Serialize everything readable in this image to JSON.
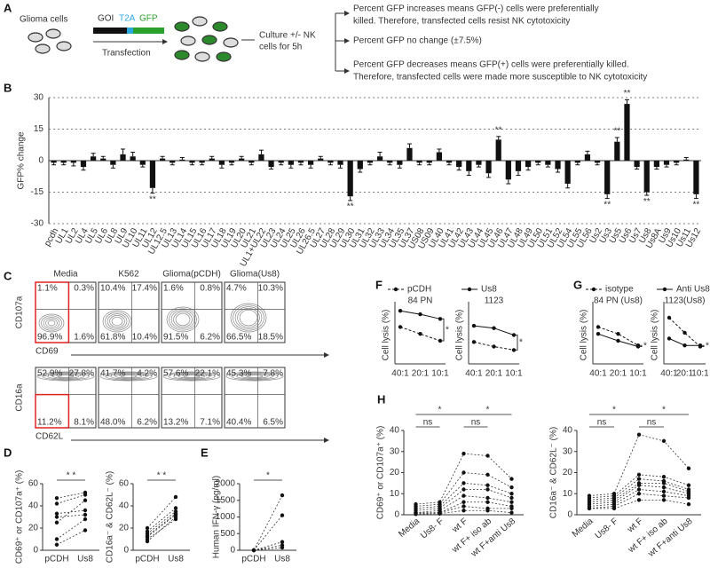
{
  "panel_a": {
    "label": "A",
    "cells": "Glioma cells",
    "construct": [
      "GOI",
      "T2A",
      "GFP"
    ],
    "transfection": "Transfection",
    "culture": [
      "Culture +/- NK",
      "cells for 5h"
    ],
    "outcomes": [
      [
        "Percent GFP increases means GFP(-) cells were preferentially",
        "killed. Therefore, transfected cells resist NK cytotoxicity"
      ],
      [
        "Percent GFP no change  (±7.5%)"
      ],
      [
        "Percent GFP decreases means GFP(+) cells were preferentially killed.",
        "Therefore, transfected cells were made more susceptible to NK cytotoxicity"
      ]
    ]
  },
  "panel_c": {
    "label": "C",
    "columns": [
      "Media",
      "K562",
      "Glioma(pCDH)",
      "Glioma(Us8)"
    ],
    "rows": [
      {
        "ylabel": "CD107a",
        "xlabel": "CD69",
        "quadrants": [
          [
            "1.1%",
            "0.3%",
            "96.9%",
            "1.6%"
          ],
          [
            "10.4%",
            "17.4%",
            "61.8%",
            "10.4%"
          ],
          [
            "1.6%",
            "0.8%",
            "91.5%",
            "6.2%"
          ],
          [
            "4.7%",
            "10.3%",
            "66.5%",
            "18.5%"
          ]
        ]
      },
      {
        "ylabel": "CD16a",
        "xlabel": "CD62L",
        "quadrants": [
          [
            "52.9%",
            "27.8%",
            "11.2%",
            "8.1%"
          ],
          [
            "41.7%",
            "4.2%",
            "48.0%",
            "6.2%"
          ],
          [
            "57.6%",
            "22.1%",
            "13.2%",
            "7.1%"
          ],
          [
            "45.3%",
            "7.8%",
            "40.4%",
            "6.5%"
          ]
        ]
      }
    ]
  },
  "chart_data": [
    {
      "type": "bar",
      "panel": "B",
      "ylabel": "GFP% change",
      "color": "#111111",
      "ylim": [
        -30,
        30
      ],
      "yticks": [
        -30,
        -15,
        0,
        15,
        30
      ],
      "grid": true,
      "categories": [
        "pcdh",
        "UL1",
        "UL2",
        "UL4",
        "UL5",
        "UL6",
        "UL8",
        "UL9",
        "UL10",
        "UL11",
        "UL12",
        "UL12.5",
        "UL13",
        "UL14",
        "UL15",
        "UL16",
        "UL17",
        "UL18",
        "UL19",
        "UL20",
        "UL21",
        "UL1+UL22",
        "UL23",
        "UL24",
        "UL25",
        "UL26",
        "UL26.5",
        "UL27",
        "UL28",
        "UL29",
        "UL30",
        "UL31",
        "UL32",
        "UL33",
        "UL34",
        "UL35",
        "UL37",
        "US08",
        "US09",
        "UL40",
        "UL41",
        "UL42",
        "UL43",
        "UL44",
        "UL45",
        "UL46",
        "UL47",
        "UL48",
        "UL49",
        "UL50",
        "UL51",
        "UL52",
        "UL54",
        "UL55",
        "UL56",
        "Us2",
        "Us3",
        "Us5",
        "Us6",
        "Us7",
        "Us8",
        "Us8A",
        "Us9",
        "Us10",
        "Us11",
        "Us12"
      ],
      "values": [
        -1,
        -1,
        -1,
        -3,
        2,
        1,
        -2,
        3,
        2,
        -2,
        -13,
        1,
        -1,
        0.5,
        -1,
        -1,
        1,
        -2,
        -1,
        1,
        -1,
        3,
        -3,
        -1,
        -2,
        -1,
        -2,
        1,
        -1,
        -2,
        -17,
        -4,
        -1,
        2,
        -1,
        -2,
        6,
        -1,
        -1,
        4,
        -1,
        -3,
        -5,
        -2,
        -6,
        10,
        -9,
        -5,
        -3,
        -1,
        -2,
        -4,
        -11,
        -1,
        3,
        -1,
        -16,
        9,
        27,
        -3,
        -15,
        -3,
        -2,
        -1,
        0.5,
        -16
      ],
      "errors": [
        1,
        1,
        1.5,
        1.5,
        1.5,
        1,
        1.5,
        2.5,
        2,
        1,
        2.5,
        1,
        1,
        1,
        1,
        1,
        1,
        1.5,
        1,
        1,
        1,
        2,
        1,
        1,
        1.5,
        1,
        1.5,
        1,
        1,
        1.5,
        2,
        1.5,
        1,
        2,
        1,
        1.5,
        2,
        1,
        1,
        1.5,
        1,
        1.5,
        2,
        1,
        2,
        1.5,
        2,
        2,
        1.5,
        1,
        1,
        1.5,
        2,
        1,
        1.5,
        1,
        2,
        2,
        2,
        1,
        1.5,
        1,
        1,
        1,
        1,
        2
      ],
      "significance": [
        null,
        null,
        null,
        null,
        null,
        null,
        null,
        null,
        null,
        null,
        "**",
        null,
        null,
        null,
        null,
        null,
        null,
        null,
        null,
        null,
        null,
        null,
        null,
        null,
        null,
        null,
        null,
        null,
        null,
        null,
        "**",
        null,
        null,
        null,
        null,
        null,
        null,
        null,
        null,
        null,
        null,
        null,
        null,
        null,
        null,
        "**",
        null,
        null,
        null,
        null,
        null,
        null,
        null,
        null,
        null,
        null,
        "**",
        "**",
        "**",
        null,
        "**",
        null,
        null,
        null,
        null,
        "**"
      ]
    },
    {
      "type": "paired",
      "panel": "D",
      "categories": [
        "pCDH",
        "Us8"
      ],
      "plots": [
        {
          "ylabel": "CD69⁺ or CD107a⁺ (%)",
          "ylim": [
            0,
            60
          ],
          "yticks": [
            0,
            20,
            40,
            60
          ],
          "values": [
            [
              47,
              52
            ],
            [
              42,
              50
            ],
            [
              33,
              36
            ],
            [
              30,
              32
            ],
            [
              25,
              45
            ],
            [
              10,
              28
            ],
            [
              5,
              18
            ]
          ],
          "annotations": [
            {
              "text": "* *",
              "from": 0,
              "to": 1
            }
          ]
        },
        {
          "ylabel": "CD16a⁻ & CD62L⁻ (%)",
          "ylim": [
            0,
            60
          ],
          "yticks": [
            0,
            20,
            40,
            60
          ],
          "values": [
            [
              20,
              48
            ],
            [
              17,
              38
            ],
            [
              15,
              35
            ],
            [
              13,
              33
            ],
            [
              12,
              32
            ],
            [
              10,
              28
            ],
            [
              8,
              30
            ]
          ],
          "annotations": [
            {
              "text": "* *",
              "from": 0,
              "to": 1
            }
          ]
        }
      ]
    },
    {
      "type": "paired",
      "panel": "E",
      "categories": [
        "pCDH",
        "Us8"
      ],
      "plots": [
        {
          "ylabel": "Human IFN-γ (pg/ml)",
          "ylim": [
            0,
            2000
          ],
          "yticks": [
            0,
            500,
            1000,
            1500,
            2000
          ],
          "values": [
            [
              0,
              1650
            ],
            [
              0,
              1050
            ],
            [
              0,
              250
            ],
            [
              0,
              150
            ],
            [
              0,
              80
            ]
          ],
          "annotations": [
            {
              "text": "*",
              "from": 0,
              "to": 1
            }
          ]
        }
      ]
    },
    {
      "type": "line",
      "panel": "F",
      "ylabel": "Cell lysis (%)",
      "ylim": [
        0,
        50
      ],
      "categories": [
        "40:1",
        "20:1",
        "10:1"
      ],
      "series": [
        {
          "name": "pCDH",
          "dashed": true
        },
        {
          "name": "Us8",
          "dashed": false
        }
      ],
      "plots": [
        {
          "title": "84 PN",
          "values": [
            [
              32,
              26,
              20
            ],
            [
              46,
              43,
              39
            ]
          ],
          "annotation": "*"
        },
        {
          "title": "1123",
          "values": [
            [
              19,
              15,
              12
            ],
            [
              33,
              31,
              25
            ]
          ],
          "annotation": "*"
        }
      ]
    },
    {
      "type": "line",
      "panel": "G",
      "ylabel": "Cell lysis (%)",
      "ylim": [
        0,
        50
      ],
      "categories": [
        "40:1",
        "20:1",
        "10:1"
      ],
      "series": [
        {
          "name": "isotype",
          "dashed": true
        },
        {
          "name": "Anti Us8",
          "dashed": false
        }
      ],
      "plots": [
        {
          "title": "84 PN (Us8)",
          "values": [
            [
              32,
              26,
              16
            ],
            [
              26,
              20,
              15
            ]
          ],
          "annotation": "*"
        },
        {
          "title": "1123(Us8)",
          "values": [
            [
              40,
              27,
              15
            ],
            [
              22,
              16,
              16
            ]
          ],
          "annotation": "*"
        }
      ]
    },
    {
      "type": "paired",
      "panel": "H",
      "categories": [
        "Media",
        "Us8- F",
        "wt F",
        "wt F+ iso ab",
        "wt F+anti Us8"
      ],
      "plots": [
        {
          "ylabel": "CD69⁺ or CD107a⁺ (%)",
          "ylim": [
            0,
            40
          ],
          "yticks": [
            0,
            10,
            20,
            30,
            40
          ],
          "values": [
            [
              5,
              6,
              29,
              28,
              17
            ],
            [
              4,
              5,
              20,
              19,
              13
            ],
            [
              3,
              4,
              15,
              14,
              10
            ],
            [
              2,
              3,
              12,
              12,
              8
            ],
            [
              1,
              2,
              9,
              8,
              6
            ],
            [
              1,
              1,
              6,
              6,
              4
            ],
            [
              0.5,
              1,
              4,
              3,
              3
            ],
            [
              0.3,
              0.5,
              2,
              2,
              1
            ]
          ],
          "annotations": [
            {
              "text": "ns",
              "from": 0,
              "to": 1
            },
            {
              "text": "*",
              "from": 0,
              "to": 2
            },
            {
              "text": "ns",
              "from": 2,
              "to": 3
            },
            {
              "text": "*",
              "from": 2,
              "to": 4
            }
          ]
        },
        {
          "ylabel": "CD16a⁻ & CD62L⁻ (%)",
          "ylim": [
            0,
            40
          ],
          "yticks": [
            0,
            10,
            20,
            30,
            40
          ],
          "values": [
            [
              9,
              10,
              38,
              35,
              22
            ],
            [
              8,
              9,
              19,
              18,
              14
            ],
            [
              7,
              8,
              17,
              16,
              12
            ],
            [
              6,
              7,
              15,
              15,
              11
            ],
            [
              5,
              6,
              14,
              13,
              10
            ],
            [
              4,
              5,
              12,
              11,
              9
            ],
            [
              3,
              4,
              10,
              9,
              8
            ],
            [
              3,
              3,
              7,
              7,
              5
            ]
          ],
          "annotations": [
            {
              "text": "ns",
              "from": 0,
              "to": 1
            },
            {
              "text": "*",
              "from": 0,
              "to": 2
            },
            {
              "text": "ns",
              "from": 2,
              "to": 3
            },
            {
              "text": "*",
              "from": 2,
              "to": 4
            }
          ]
        }
      ]
    }
  ]
}
